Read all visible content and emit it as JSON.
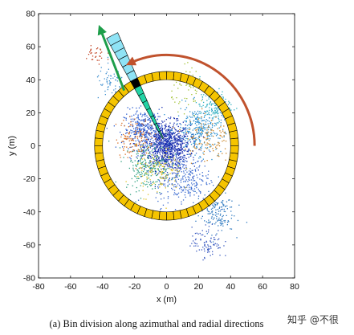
{
  "caption": "(a) Bin division along azimuthal and radial directions",
  "watermark": "知乎 @不很",
  "chart_data": {
    "type": "scatter",
    "xlabel": "x (m)",
    "ylabel": "y (m)",
    "xlim": [
      -80,
      80
    ],
    "ylim": [
      -80,
      80
    ],
    "xticks": [
      -80,
      -60,
      -40,
      -20,
      0,
      20,
      40,
      60,
      80
    ],
    "yticks": [
      -80,
      -60,
      -40,
      -20,
      0,
      20,
      40,
      60,
      80
    ],
    "grid": false,
    "ring": {
      "center": [
        0,
        0
      ],
      "inner_radius": 40,
      "outer_radius": 45,
      "segments": 60,
      "color": "#f5c400"
    },
    "azimuth_bin": {
      "angle_start_deg": 114,
      "angle_end_deg": 120,
      "r_min": 5,
      "r_max": 75,
      "radial_bins": 14,
      "highlight_bin_r": [
        40,
        45
      ],
      "fill_teal": "#22d3a5",
      "fill_cyan": "#8fe3f5",
      "highlight_color": "#000000"
    },
    "arrow_radial": {
      "from": [
        -26.5,
        33.5
      ],
      "to": [
        -41.5,
        71
      ],
      "color": "#1e9e4a"
    },
    "arrow_arc": {
      "radius": 55,
      "start_deg": 0,
      "end_deg": 115,
      "color": "#c0522d"
    },
    "point_cloud": [
      {
        "x": 0,
        "y": 0,
        "spread": 12,
        "count": 900,
        "color": "#1a2fb0"
      },
      {
        "x": -15,
        "y": 10,
        "spread": 10,
        "count": 300,
        "color": "#2a5bd0"
      },
      {
        "x": 20,
        "y": 10,
        "spread": 12,
        "count": 300,
        "color": "#2a8fd0"
      },
      {
        "x": 10,
        "y": -20,
        "spread": 14,
        "count": 300,
        "color": "#3a6ad0"
      },
      {
        "x": -12,
        "y": -12,
        "spread": 12,
        "count": 220,
        "color": "#2fa080"
      },
      {
        "x": 30,
        "y": 25,
        "spread": 8,
        "count": 160,
        "color": "#30b0c0"
      },
      {
        "x": 30,
        "y": -40,
        "spread": 10,
        "count": 160,
        "color": "#2f7ac0"
      },
      {
        "x": 25,
        "y": -58,
        "spread": 8,
        "count": 90,
        "color": "#3a5ac0"
      },
      {
        "x": -20,
        "y": 5,
        "spread": 10,
        "count": 120,
        "color": "#d86a20"
      },
      {
        "x": 25,
        "y": 5,
        "spread": 12,
        "count": 110,
        "color": "#c98020"
      },
      {
        "x": -5,
        "y": -15,
        "spread": 12,
        "count": 120,
        "color": "#e0c020"
      },
      {
        "x": 15,
        "y": 35,
        "spread": 10,
        "count": 60,
        "color": "#a0c030"
      },
      {
        "x": -35,
        "y": 38,
        "spread": 8,
        "count": 60,
        "color": "#4090d0"
      },
      {
        "x": -45,
        "y": 55,
        "spread": 6,
        "count": 30,
        "color": "#c04020"
      }
    ]
  }
}
